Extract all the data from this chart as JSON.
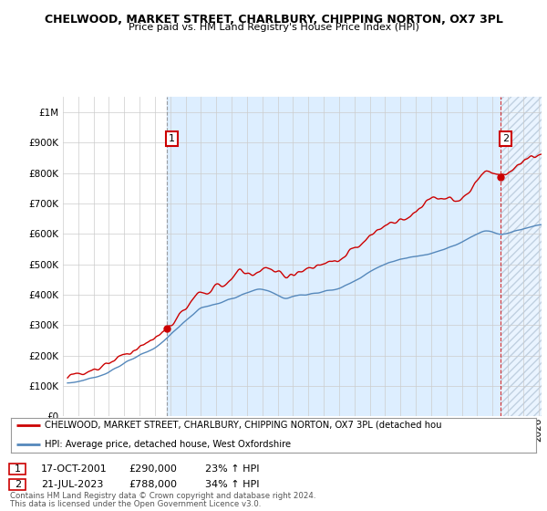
{
  "title": "CHELWOOD, MARKET STREET, CHARLBURY, CHIPPING NORTON, OX7 3PL",
  "subtitle": "Price paid vs. HM Land Registry's House Price Index (HPI)",
  "legend_line1": "CHELWOOD, MARKET STREET, CHARLBURY, CHIPPING NORTON, OX7 3PL (detached hou",
  "legend_line2": "HPI: Average price, detached house, West Oxfordshire",
  "footer1": "Contains HM Land Registry data © Crown copyright and database right 2024.",
  "footer2": "This data is licensed under the Open Government Licence v3.0.",
  "sale1_label": "1",
  "sale1_date": "17-OCT-2001",
  "sale1_price": "£290,000",
  "sale1_hpi": "23% ↑ HPI",
  "sale2_label": "2",
  "sale2_date": "21-JUL-2023",
  "sale2_price": "£788,000",
  "sale2_hpi": "34% ↑ HPI",
  "red_color": "#cc0000",
  "blue_color": "#5588bb",
  "fill_color": "#ddeeff",
  "background_color": "#ffffff",
  "grid_color": "#cccccc",
  "ylim": [
    0,
    1050000
  ],
  "xlim_start": 1995.3,
  "xlim_end": 2026.2,
  "sale1_x": 2001.8,
  "sale1_y": 290000,
  "sale2_x": 2023.55,
  "sale2_y": 788000
}
